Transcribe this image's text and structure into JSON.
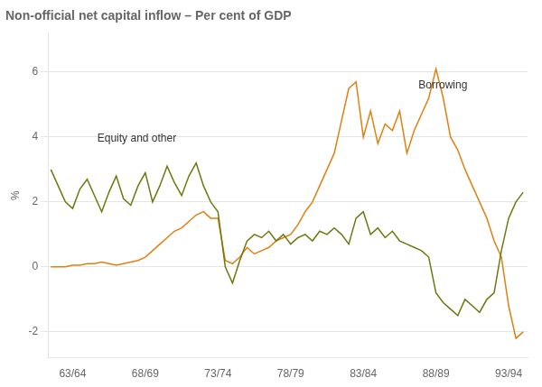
{
  "chart_data": {
    "type": "line",
    "title": "Non-official net capital inflow – Per cent of GDP",
    "ylabel": "%",
    "x": [
      1962.0,
      1962.5,
      1963.0,
      1963.5,
      1964.0,
      1964.5,
      1965.0,
      1965.5,
      1966.0,
      1966.5,
      1967.0,
      1967.5,
      1968.0,
      1968.5,
      1969.0,
      1969.5,
      1970.0,
      1970.5,
      1971.0,
      1971.5,
      1972.0,
      1972.5,
      1973.0,
      1973.5,
      1974.0,
      1974.5,
      1975.0,
      1975.5,
      1976.0,
      1976.5,
      1977.0,
      1977.5,
      1978.0,
      1978.5,
      1979.0,
      1979.5,
      1980.0,
      1980.5,
      1981.0,
      1981.5,
      1982.0,
      1982.5,
      1983.0,
      1983.5,
      1984.0,
      1984.5,
      1985.0,
      1985.5,
      1986.0,
      1986.5,
      1987.0,
      1987.5,
      1988.0,
      1988.5,
      1989.0,
      1989.5,
      1990.0,
      1990.5,
      1991.0,
      1991.5,
      1992.0,
      1992.5,
      1993.0,
      1993.5,
      1994.0,
      1994.5
    ],
    "series": [
      {
        "color": "#6b7a10",
        "values": [
          3.0,
          2.5,
          2.0,
          1.8,
          2.4,
          2.7,
          2.2,
          1.7,
          2.3,
          2.8,
          2.1,
          1.9,
          2.5,
          2.9,
          2.0,
          2.5,
          3.1,
          2.6,
          2.2,
          2.8,
          3.2,
          2.5,
          2.0,
          1.7,
          0.0,
          -0.5,
          0.2,
          0.8,
          1.0,
          0.9,
          1.1,
          0.8,
          1.0,
          0.7,
          0.9,
          1.0,
          0.8,
          1.1,
          1.0,
          1.2,
          1.0,
          0.7,
          1.5,
          1.7,
          1.0,
          1.2,
          0.9,
          1.1,
          0.8,
          0.7,
          0.6,
          0.5,
          0.3,
          -0.8,
          -1.1,
          -1.3,
          -1.5,
          -1.0,
          -1.2,
          -1.4,
          -1.0,
          -0.8,
          0.5,
          1.5,
          2.0,
          2.3
        ]
      },
      {
        "color": "#e08010",
        "values": [
          0.0,
          0.0,
          0.0,
          0.05,
          0.05,
          0.1,
          0.1,
          0.15,
          0.1,
          0.05,
          0.1,
          0.15,
          0.2,
          0.3,
          0.5,
          0.7,
          0.9,
          1.1,
          1.2,
          1.4,
          1.6,
          1.7,
          1.5,
          1.5,
          0.2,
          0.1,
          0.3,
          0.6,
          0.4,
          0.5,
          0.6,
          0.8,
          0.9,
          1.0,
          1.3,
          1.7,
          2.0,
          2.5,
          3.0,
          3.5,
          4.5,
          5.5,
          5.7,
          4.0,
          4.8,
          3.8,
          4.4,
          4.2,
          4.8,
          3.5,
          4.2,
          4.7,
          5.2,
          6.1,
          5.2,
          4.0,
          3.6,
          3.0,
          2.5,
          2.0,
          1.5,
          0.8,
          0.3,
          -1.2,
          -2.2,
          -2.0
        ]
      }
    ],
    "xlim": [
      1961.8,
      1994.8
    ],
    "xticks": [
      {
        "value": 1963.5,
        "label": "63/64"
      },
      {
        "value": 1968.5,
        "label": "68/69"
      },
      {
        "value": 1973.5,
        "label": "73/74"
      },
      {
        "value": 1978.5,
        "label": "78/79"
      },
      {
        "value": 1983.5,
        "label": "83/84"
      },
      {
        "value": 1988.5,
        "label": "88/89"
      },
      {
        "value": 1993.5,
        "label": "93/94"
      }
    ],
    "ylim": [
      -2.8,
      7.2
    ],
    "yticks": [
      -2,
      0,
      2,
      4,
      6
    ],
    "grid": "y",
    "annotations": [
      {
        "text": "Equity and other",
        "x": 1965.2,
        "y": 3.85
      },
      {
        "text": "Borrowing",
        "x": 1987.3,
        "y": 5.5
      }
    ]
  }
}
